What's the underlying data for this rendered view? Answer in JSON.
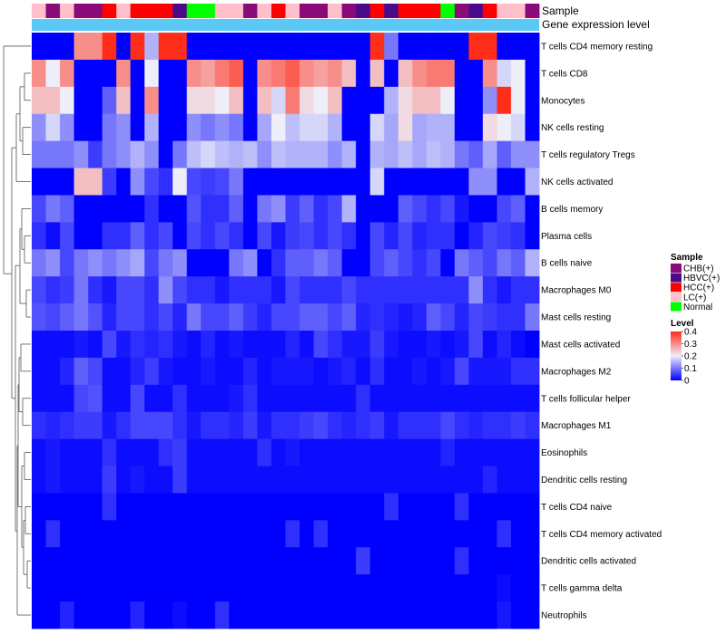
{
  "chart_data": {
    "type": "heatmap",
    "title": "",
    "annotations": {
      "sample_label": "Sample",
      "expression_label": "Gene expression level"
    },
    "rows": [
      "T cells CD4 memory resting",
      "T cells CD8",
      "Monocytes",
      "NK cells resting",
      "T cells regulatory  Tregs",
      "NK cells activated",
      "B cells memory",
      "Plasma cells",
      "B cells naive",
      "Macrophages M0",
      "Mast cells resting",
      "Mast cells activated",
      "Macrophages M2",
      "T cells follicular helper",
      "Macrophages M1",
      "Eosinophils",
      "Dendritic cells resting",
      "T cells CD4 naive",
      "T cells CD4 memory activated",
      "Dendritic cells activated",
      "T cells gamma delta",
      "Neutrophils"
    ],
    "sample_groups": [
      "LC(+)",
      "CHB(+)",
      "LC(+)",
      "CHB(+)",
      "CHB(+)",
      "HCC(+)",
      "LC(+)",
      "HCC(+)",
      "HCC(+)",
      "HCC(+)",
      "HBVC(+)",
      "Normal",
      "Normal",
      "LC(+)",
      "LC(+)",
      "CHB(+)",
      "LC(+)",
      "HCC(+)",
      "LC(+)",
      "CHB(+)",
      "CHB(+)",
      "LC(+)",
      "CHB(+)",
      "HBVC(+)",
      "HCC(+)",
      "HBVC(+)",
      "HCC(+)",
      "HCC(+)",
      "HCC(+)",
      "Normal",
      "CHB(+)",
      "HBVC(+)",
      "HCC(+)",
      "LC(+)",
      "LC(+)",
      "CHB(+)"
    ],
    "values": [
      [
        0,
        0,
        0,
        0.3,
        0.3,
        0.4,
        0,
        0.4,
        0.15,
        0.4,
        0.4,
        0,
        0,
        0,
        0,
        0,
        0,
        0,
        0,
        0,
        0,
        0,
        0,
        0,
        0.4,
        0.1,
        0,
        0,
        0,
        0,
        0,
        0.4,
        0.4,
        0,
        0,
        0
      ],
      [
        0.3,
        0.2,
        0.3,
        0,
        0,
        0,
        0.3,
        0,
        0.2,
        0,
        0,
        0.3,
        0.28,
        0.32,
        0.35,
        0,
        0.3,
        0.32,
        0.35,
        0.3,
        0.28,
        0.3,
        0.25,
        0,
        0.25,
        0,
        0.25,
        0.3,
        0.32,
        0.32,
        0,
        0,
        0.3,
        0.18,
        0.2,
        0
      ],
      [
        0.25,
        0.25,
        0.2,
        0,
        0,
        0.08,
        0.25,
        0,
        0.3,
        0,
        0,
        0.22,
        0.22,
        0.2,
        0.25,
        0,
        0.25,
        0.18,
        0.32,
        0.22,
        0.2,
        0.25,
        0,
        0,
        0,
        0.15,
        0.22,
        0.25,
        0.25,
        0.2,
        0,
        0,
        0.12,
        0.4,
        0.2,
        0
      ],
      [
        0.12,
        0.18,
        0.12,
        0,
        0,
        0.1,
        0.12,
        0,
        0.15,
        0,
        0,
        0.12,
        0.1,
        0.12,
        0.1,
        0,
        0.14,
        0.2,
        0.16,
        0.18,
        0.18,
        0.15,
        0,
        0,
        0.18,
        0.14,
        0.22,
        0.14,
        0.15,
        0.15,
        0,
        0,
        0.22,
        0.2,
        0.18,
        0
      ],
      [
        0.1,
        0.1,
        0.1,
        0.12,
        0.05,
        0.1,
        0.12,
        0.15,
        0.12,
        0,
        0.1,
        0.16,
        0.18,
        0.16,
        0.15,
        0.16,
        0.12,
        0.16,
        0.15,
        0.15,
        0.15,
        0.12,
        0.15,
        0,
        0.15,
        0.14,
        0.16,
        0.14,
        0.16,
        0.15,
        0.1,
        0.08,
        0.14,
        0.08,
        0.12,
        0.12
      ],
      [
        0,
        0,
        0,
        0.25,
        0.25,
        0.05,
        0,
        0.12,
        0.06,
        0.04,
        0.2,
        0.06,
        0.05,
        0.06,
        0.1,
        0,
        0,
        0,
        0,
        0,
        0,
        0,
        0,
        0,
        0.18,
        0,
        0,
        0,
        0,
        0,
        0,
        0.12,
        0.12,
        0,
        0,
        0.15
      ],
      [
        0.06,
        0.1,
        0.08,
        0,
        0,
        0,
        0,
        0,
        0.04,
        0,
        0,
        0.07,
        0.04,
        0.04,
        0.08,
        0,
        0.1,
        0.12,
        0.05,
        0.08,
        0.04,
        0.06,
        0.15,
        0,
        0,
        0,
        0.08,
        0.06,
        0.04,
        0.06,
        0.02,
        0,
        0,
        0.06,
        0.08,
        0
      ],
      [
        0.04,
        0.01,
        0.06,
        0,
        0,
        0.04,
        0.04,
        0.08,
        0.04,
        0.06,
        0,
        0.06,
        0.04,
        0.06,
        0.04,
        0,
        0.06,
        0.02,
        0.05,
        0.06,
        0.04,
        0.06,
        0.04,
        0,
        0.06,
        0.03,
        0.06,
        0.03,
        0.04,
        0.04,
        0,
        0.03,
        0.06,
        0.05,
        0.04,
        0
      ],
      [
        0.1,
        0.12,
        0.06,
        0.1,
        0.12,
        0.1,
        0.12,
        0.14,
        0.06,
        0.1,
        0.12,
        0,
        0,
        0,
        0.1,
        0.12,
        0,
        0.04,
        0.08,
        0.08,
        0.1,
        0.08,
        0,
        0,
        0.06,
        0.08,
        0.06,
        0.04,
        0.06,
        0,
        0.1,
        0.08,
        0.06,
        0.1,
        0.08,
        0.15
      ],
      [
        0.06,
        0.04,
        0.05,
        0.1,
        0.04,
        0.02,
        0.06,
        0.06,
        0.04,
        0.12,
        0.06,
        0.04,
        0.04,
        0.02,
        0.04,
        0.04,
        0.04,
        0.02,
        0.06,
        0.04,
        0.04,
        0.04,
        0.06,
        0.04,
        0.04,
        0.04,
        0.04,
        0.04,
        0.04,
        0.04,
        0.04,
        0.12,
        0.04,
        0.02,
        0.04,
        0.04
      ],
      [
        0.07,
        0.06,
        0.08,
        0.1,
        0.07,
        0.03,
        0.06,
        0.06,
        0.04,
        0.06,
        0.03,
        0.1,
        0.06,
        0.06,
        0.08,
        0.05,
        0.03,
        0.06,
        0.06,
        0.08,
        0.08,
        0.06,
        0.08,
        0.03,
        0.04,
        0.03,
        0.02,
        0.03,
        0.08,
        0.06,
        0.03,
        0.06,
        0.05,
        0.04,
        0.04,
        0.1
      ],
      [
        0.01,
        0.01,
        0.01,
        0.02,
        0.01,
        0.06,
        0.02,
        0.04,
        0.03,
        0.04,
        0.02,
        0.01,
        0.03,
        0.01,
        0.02,
        0.01,
        0.01,
        0.01,
        0.03,
        0.01,
        0.06,
        0.04,
        0.02,
        0.02,
        0.05,
        0.02,
        0.01,
        0.01,
        0.02,
        0.01,
        0.02,
        0.06,
        0.01,
        0.03,
        0.01,
        0
      ],
      [
        0.01,
        0.01,
        0.03,
        0.08,
        0.06,
        0.01,
        0.01,
        0.03,
        0.05,
        0.02,
        0.01,
        0.01,
        0.02,
        0.01,
        0.01,
        0.03,
        0.01,
        0.02,
        0.02,
        0.02,
        0.01,
        0.02,
        0.03,
        0.01,
        0.04,
        0.01,
        0.01,
        0.02,
        0.01,
        0.02,
        0.06,
        0.02,
        0.02,
        0.02,
        0.04,
        0.04
      ],
      [
        0.01,
        0.01,
        0.01,
        0.06,
        0.07,
        0.01,
        0.01,
        0.06,
        0.01,
        0.01,
        0.04,
        0.01,
        0.01,
        0.01,
        0.02,
        0.04,
        0.01,
        0.01,
        0.01,
        0.01,
        0.01,
        0.01,
        0.01,
        0.04,
        0.01,
        0.01,
        0.01,
        0.01,
        0.01,
        0.01,
        0.01,
        0.01,
        0.01,
        0.01,
        0.01,
        0.01
      ],
      [
        0.04,
        0.03,
        0.04,
        0.05,
        0.05,
        0.02,
        0.04,
        0.06,
        0.06,
        0.06,
        0.04,
        0.02,
        0.04,
        0.04,
        0.03,
        0.05,
        0.02,
        0.04,
        0.04,
        0.05,
        0.06,
        0.04,
        0.03,
        0.04,
        0.05,
        0.02,
        0.04,
        0.04,
        0.04,
        0.06,
        0.04,
        0.03,
        0.04,
        0.04,
        0.05,
        0.04
      ],
      [
        0.01,
        0.02,
        0.01,
        0.01,
        0.01,
        0.04,
        0.01,
        0.01,
        0.01,
        0.04,
        0.05,
        0.01,
        0.01,
        0.01,
        0.01,
        0.01,
        0.04,
        0.01,
        0.02,
        0.01,
        0.01,
        0.01,
        0.01,
        0.01,
        0.01,
        0.01,
        0.01,
        0.01,
        0.01,
        0.03,
        0.01,
        0.01,
        0.01,
        0.01,
        0.01,
        0.01
      ],
      [
        0.01,
        0.02,
        0.01,
        0.01,
        0.01,
        0.05,
        0.01,
        0.02,
        0.01,
        0.01,
        0.05,
        0.01,
        0.01,
        0.01,
        0.01,
        0.01,
        0.01,
        0.01,
        0.01,
        0.01,
        0.01,
        0.01,
        0.01,
        0.01,
        0.01,
        0.01,
        0.01,
        0.01,
        0.01,
        0.01,
        0.01,
        0.01,
        0.03,
        0.01,
        0.01,
        0.01
      ],
      [
        0,
        0,
        0,
        0,
        0,
        0.04,
        0,
        0,
        0,
        0,
        0,
        0,
        0,
        0,
        0,
        0,
        0,
        0,
        0,
        0,
        0,
        0,
        0,
        0,
        0,
        0.04,
        0,
        0,
        0,
        0,
        0.04,
        0,
        0,
        0,
        0,
        0
      ],
      [
        0,
        0.04,
        0,
        0,
        0,
        0,
        0,
        0,
        0,
        0,
        0,
        0,
        0,
        0,
        0,
        0,
        0,
        0,
        0.04,
        0,
        0.04,
        0,
        0,
        0,
        0,
        0,
        0,
        0,
        0,
        0,
        0,
        0,
        0,
        0.04,
        0,
        0
      ],
      [
        0,
        0,
        0,
        0,
        0,
        0,
        0,
        0,
        0,
        0,
        0,
        0,
        0,
        0,
        0,
        0,
        0,
        0,
        0,
        0,
        0,
        0,
        0,
        0.05,
        0,
        0,
        0,
        0,
        0,
        0,
        0.04,
        0,
        0,
        0,
        0,
        0
      ],
      [
        0,
        0,
        0,
        0,
        0,
        0,
        0,
        0,
        0,
        0,
        0,
        0,
        0,
        0,
        0,
        0,
        0,
        0,
        0,
        0,
        0,
        0,
        0,
        0,
        0,
        0,
        0,
        0,
        0,
        0,
        0,
        0,
        0,
        0.01,
        0,
        0
      ],
      [
        0,
        0,
        0.03,
        0,
        0,
        0,
        0,
        0.03,
        0,
        0,
        0.01,
        0,
        0,
        0.04,
        0,
        0,
        0,
        0,
        0,
        0,
        0,
        0,
        0,
        0,
        0,
        0,
        0,
        0,
        0,
        0,
        0,
        0,
        0,
        0.02,
        0,
        0
      ]
    ],
    "colors": {
      "low": "#0000FF",
      "mid": "#EEEEF8",
      "high": "#FF2D1A",
      "groups": {
        "CHB(+)": "#8B0A7A",
        "HBVC(+)": "#4B0A8A",
        "HCC(+)": "#FF0000",
        "LC(+)": "#FFC0CB",
        "Normal": "#00FF00"
      },
      "expression_bar": "#5BC8F5"
    },
    "legend": {
      "sample_title": "Sample",
      "sample_items": [
        "CHB(+)",
        "HBVC(+)",
        "HCC(+)",
        "LC(+)",
        "Normal"
      ],
      "level_title": "Level",
      "level_ticks": [
        0.4,
        0.3,
        0.2,
        0.1,
        0
      ],
      "level_range": [
        0,
        0.4
      ]
    }
  }
}
